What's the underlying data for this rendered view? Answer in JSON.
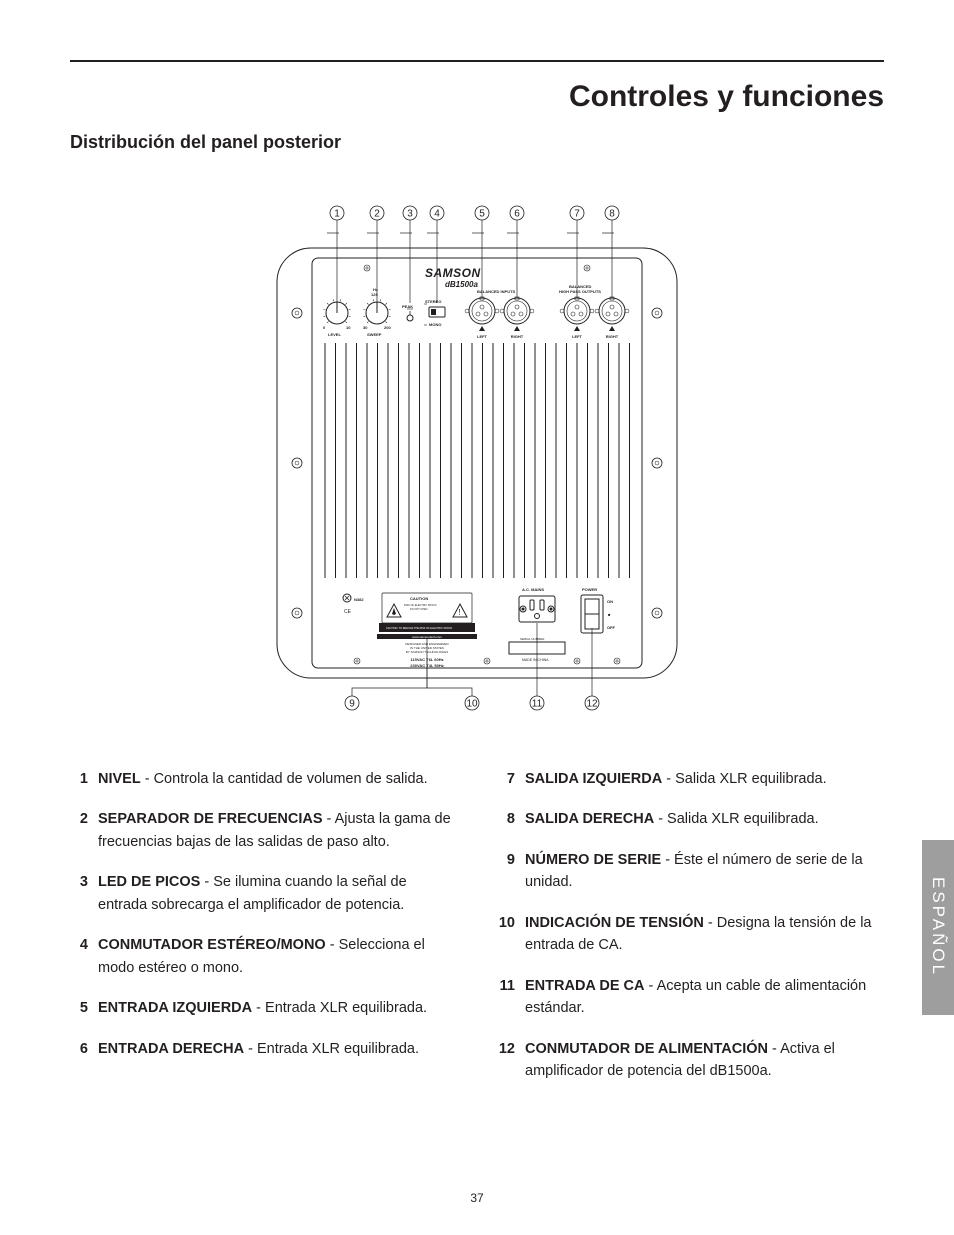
{
  "header": {
    "title": "Controles y funciones",
    "subtitle": "Distribución del panel posterior"
  },
  "diagram": {
    "brand": "SAMSON",
    "model": "dB1500a",
    "callouts_top": [
      "1",
      "2",
      "3",
      "4",
      "5",
      "6",
      "7",
      "8"
    ],
    "callouts_bottom": [
      "9",
      "10",
      "11",
      "12"
    ],
    "labels": {
      "balanced_inputs": "BALANCED INPUTS",
      "balanced_outputs": "BALANCED\nHIGH PASS OUTPUTS",
      "left": "LEFT",
      "right": "RIGHT",
      "level": "LEVEL",
      "sweep": "SWEEP",
      "hz": "Hz",
      "peak": "PEAK",
      "stereo": "STEREO",
      "mono": "MONO",
      "caution": "CAUTION",
      "ac_mains": "A.C. MAINS",
      "power": "POWER",
      "on": "ON",
      "off": "OFF",
      "serial": "SERIAL NUMBER",
      "made": "MADE IN CHINA",
      "url": "www.samsontech.com",
      "v1": "115VAC  T6L  60Hz",
      "v2": "230VAC  T4L  50Hz",
      "n382": "N382",
      "designed": "DESIGNED AND ENGINEERED\nIN THE UNITED STATES\nBY SAMSON TECHNOLOGIES",
      "level_ticks": [
        "0",
        "10"
      ],
      "sweep_ticks": [
        "30",
        "200"
      ]
    }
  },
  "items_left": [
    {
      "n": "1",
      "label": "NIVEL",
      "text": " - Controla la cantidad de volumen de salida."
    },
    {
      "n": "2",
      "label": "SEPARADOR DE FRECUENCIAS",
      "text": " - Ajusta la gama de frecuencias bajas de las salidas de paso alto."
    },
    {
      "n": "3",
      "label": "LED DE PICOS",
      "text": " - Se ilumina cuando la señal de entrada sobrecarga el amplificador de potencia."
    },
    {
      "n": "4",
      "label": "CONMUTADOR ESTÉREO/MONO",
      "text": " - Selecciona el modo estéreo o mono."
    },
    {
      "n": "5",
      "label": "ENTRADA IZQUIERDA",
      "text": " - Entrada XLR equilibrada."
    },
    {
      "n": "6",
      "label": "ENTRADA DERECHA",
      "text": " - Entrada XLR equilibrada."
    }
  ],
  "items_right": [
    {
      "n": "7",
      "label": "SALIDA IZQUIERDA",
      "text": " - Salida XLR equilibrada."
    },
    {
      "n": "8",
      "label": "SALIDA DERECHA",
      "text": " - Salida XLR equilibrada."
    },
    {
      "n": "9",
      "label": "NÚMERO DE SERIE",
      "text": " - Éste el número de serie de la unidad."
    },
    {
      "n": "10",
      "label": "INDICACIÓN DE TENSIÓN",
      "text": " - Designa la tensión de la entrada de CA."
    },
    {
      "n": "11",
      "label": "ENTRADA DE CA",
      "text": " -  Acepta un cable de alimentación estándar."
    },
    {
      "n": "12",
      "label": "CONMUTADOR DE ALIMENTACIÓN",
      "text": " - Activa el amplificador de potencia del dB1500a."
    }
  ],
  "side_tab": "ESPAÑOL",
  "page_number": "37",
  "colors": {
    "text": "#231f20",
    "tab_bg": "#9e9e9e",
    "tab_text": "#ffffff",
    "stroke": "#231f20"
  }
}
